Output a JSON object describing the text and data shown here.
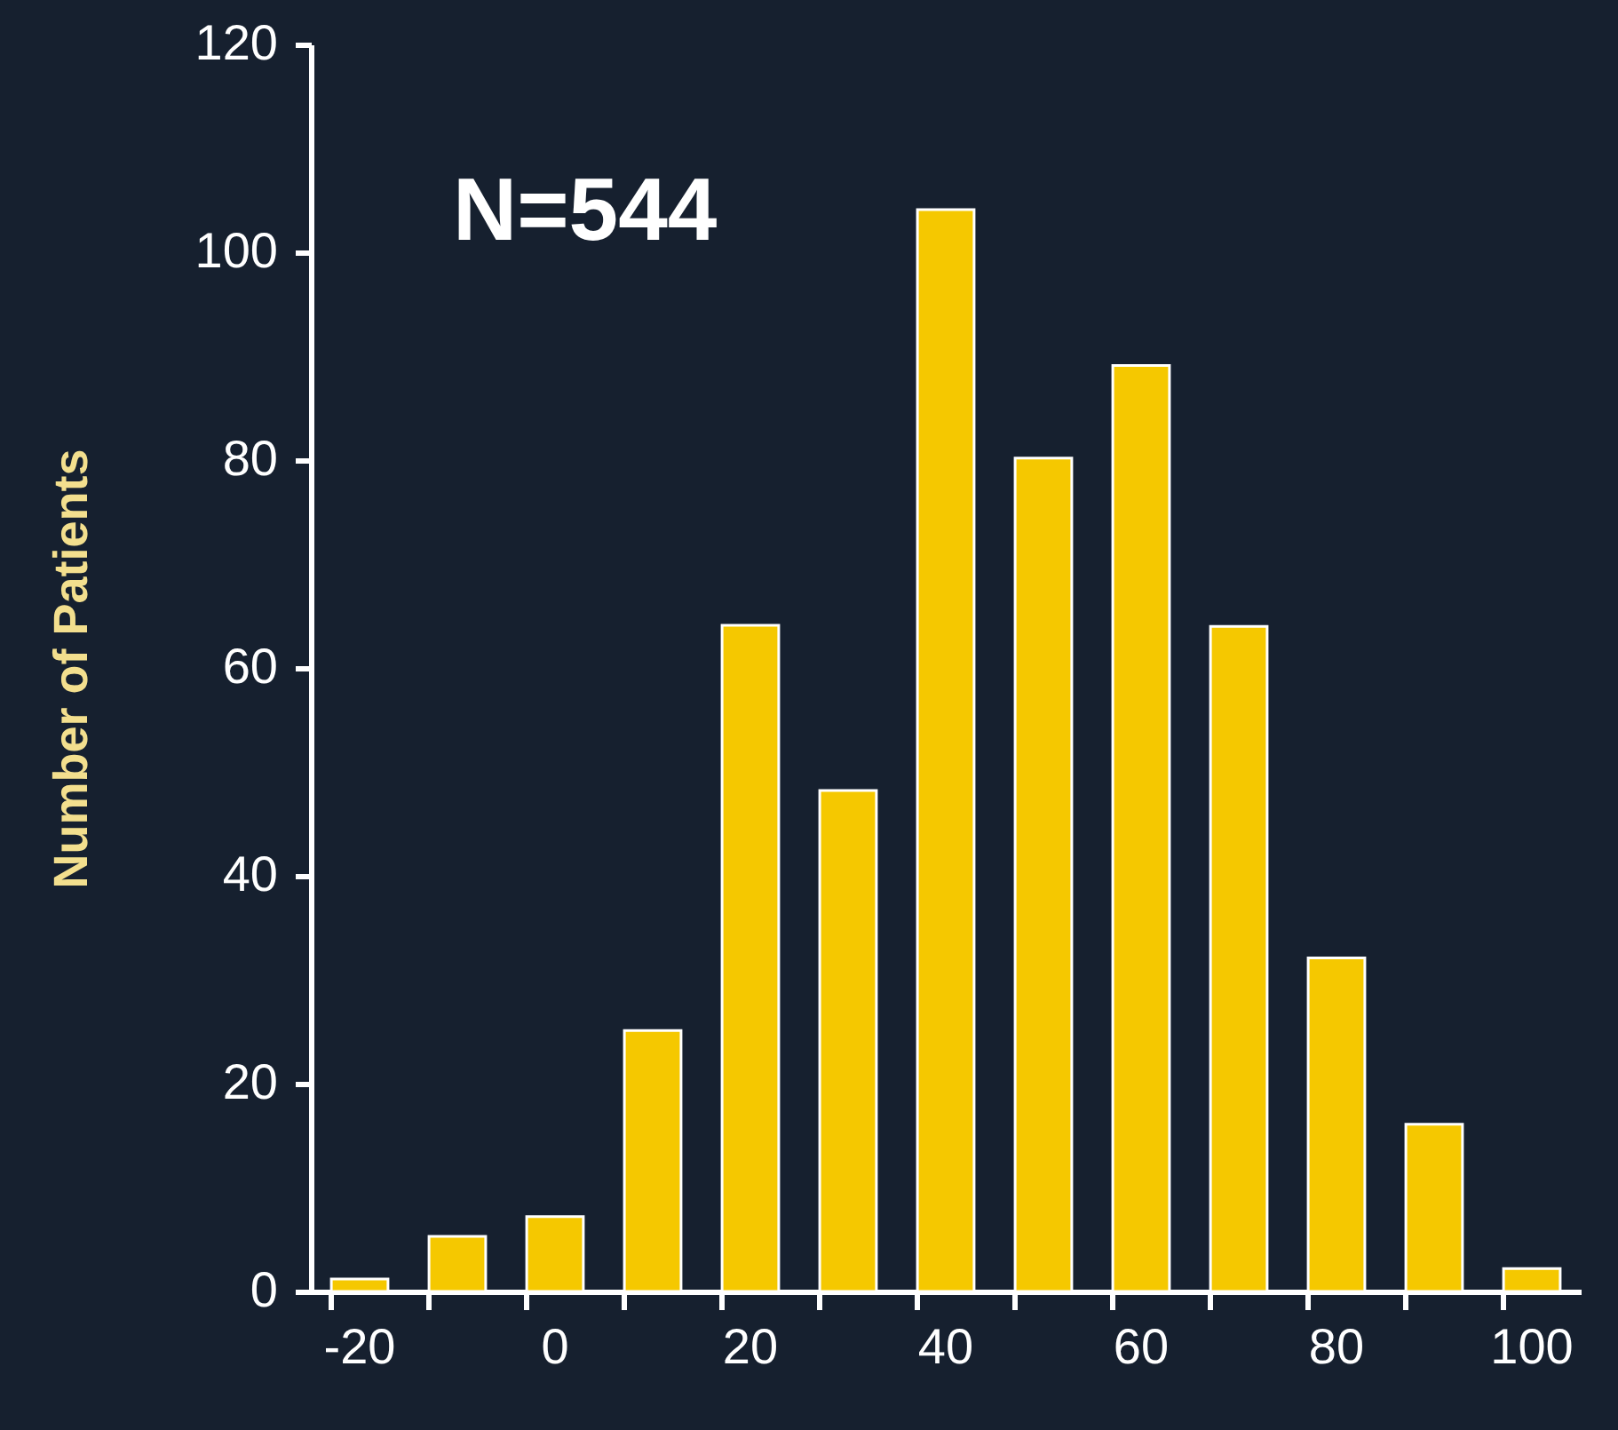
{
  "chart_data": {
    "type": "bar",
    "ylabel": "Number of Patients",
    "annotations": [
      "N=544"
    ],
    "categories": [
      "-20",
      null,
      "0",
      null,
      "20",
      null,
      "40",
      null,
      "60",
      null,
      "80",
      null,
      "100"
    ],
    "values": [
      1.2,
      5.3,
      7.2,
      25.1,
      64.1,
      48.2,
      104.1,
      80.2,
      89.1,
      64,
      32.1,
      16.1,
      2.2
    ],
    "color": "#f5c800",
    "ylim": [
      0,
      120
    ],
    "yticks": [
      0,
      20,
      40,
      60,
      80,
      100,
      120
    ]
  }
}
